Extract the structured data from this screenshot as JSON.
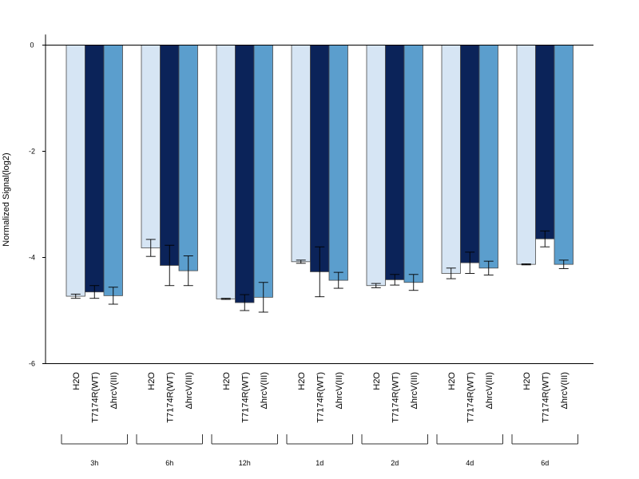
{
  "chart_data": {
    "type": "bar",
    "ylabel": "Normalized Signal(log2)",
    "xlabel": "",
    "ylim": [
      -6,
      0.2
    ],
    "yticks": [
      0,
      -2,
      -4,
      -6
    ],
    "time_groups": [
      "3h",
      "6h",
      "12h",
      "1d",
      "2d",
      "4d",
      "6d"
    ],
    "bar_labels": [
      "H2O",
      "T7174R(WT)",
      "ΔhrcV(III)"
    ],
    "series": [
      {
        "name": "H2O",
        "color": "#d6e5f4",
        "values": [
          -4.73,
          -3.82,
          -4.78,
          -4.08,
          -4.53,
          -4.3,
          -4.13
        ],
        "errors": [
          0.04,
          0.16,
          0.01,
          0.03,
          0.04,
          0.1,
          0.01
        ]
      },
      {
        "name": "T7174R(WT)",
        "color": "#0b2359",
        "values": [
          -4.65,
          -4.15,
          -4.85,
          -4.27,
          -4.42,
          -4.1,
          -3.65
        ],
        "errors": [
          0.12,
          0.38,
          0.15,
          0.47,
          0.1,
          0.2,
          0.15
        ]
      },
      {
        "name": "ΔhrcV(III)",
        "color": "#5b9ecd",
        "values": [
          -4.72,
          -4.25,
          -4.75,
          -4.43,
          -4.47,
          -4.2,
          -4.13
        ],
        "errors": [
          0.16,
          0.28,
          0.28,
          0.15,
          0.15,
          0.13,
          0.08
        ]
      }
    ]
  }
}
